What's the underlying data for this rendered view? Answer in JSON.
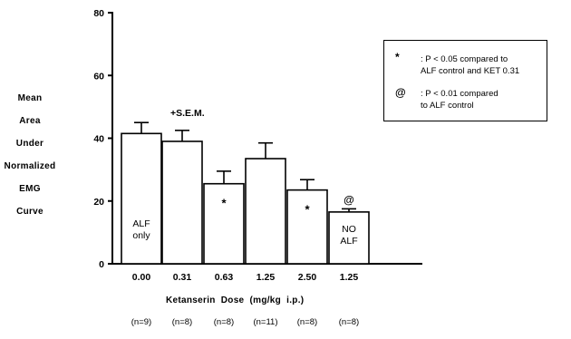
{
  "chart_data": {
    "type": "bar",
    "ylabel_lines": [
      "Mean",
      "Area",
      "Under",
      "Normalized",
      "EMG",
      "Curve"
    ],
    "xlabel": "Ketanserin Dose (mg/kg i.p.)",
    "ylim": [
      0,
      80
    ],
    "yticks": [
      0,
      20,
      40,
      60,
      80
    ],
    "grid": false,
    "legend_position": "top-right",
    "categories": [
      "0.00",
      "0.31",
      "0.63",
      "1.25",
      "2.50",
      "1.25"
    ],
    "sample_sizes": [
      "(n=9)",
      "(n=8)",
      "(n=8)",
      "(n=11)",
      "(n=8)",
      "(n=8)"
    ],
    "values": [
      41.5,
      39,
      25.5,
      33.5,
      23.5,
      16.5
    ],
    "sem": [
      3.5,
      3.5,
      4,
      5,
      3.3,
      1
    ],
    "bar_labels": [
      [
        "ALF",
        "only"
      ],
      [],
      [],
      [],
      [],
      [
        "NO",
        "ALF"
      ]
    ],
    "markers": [
      "",
      "",
      "*",
      "",
      "*",
      "@"
    ],
    "sem_annotation": "+S.E.M.",
    "legend": [
      {
        "symbol": "*",
        "text_lines": [
          ": P < 0.05 compared to",
          "ALF control and KET 0.31"
        ]
      },
      {
        "symbol": "@",
        "text_lines": [
          ": P < 0.01 compared",
          "to ALF control"
        ]
      }
    ]
  }
}
